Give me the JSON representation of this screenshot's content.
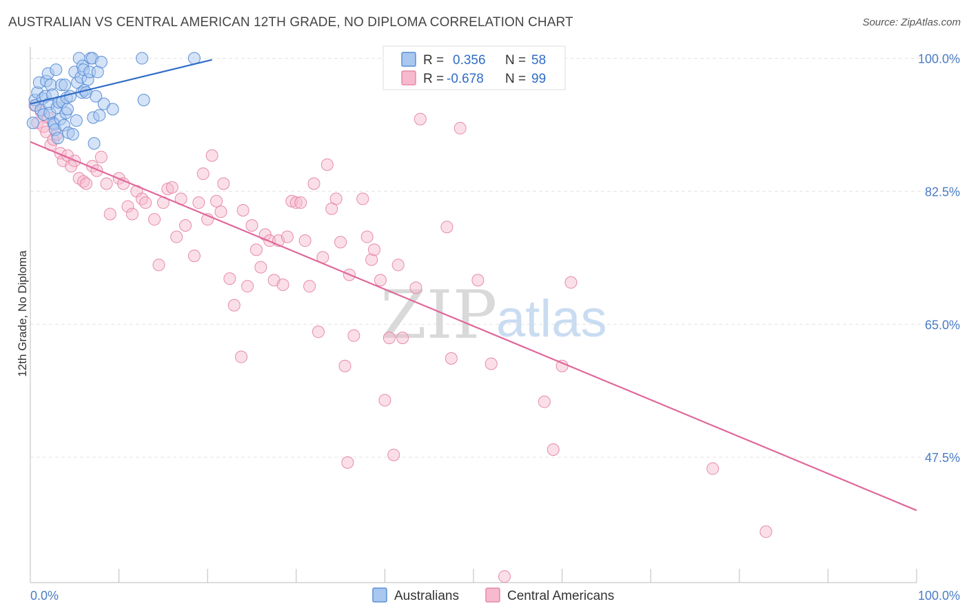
{
  "title": "AUSTRALIAN VS CENTRAL AMERICAN 12TH GRADE, NO DIPLOMA CORRELATION CHART",
  "source": "Source: ZipAtlas.com",
  "watermark": {
    "zip": "ZIP",
    "atlas": "atlas"
  },
  "colors": {
    "blue_fill": "#a9c7ef",
    "blue_stroke": "#5b8fd6",
    "blue_line": "#2f6cc6",
    "pink_fill": "#f6b9cd",
    "pink_stroke": "#e58aa8",
    "pink_line": "#e0679a",
    "grid": "#e3e3e3",
    "tick_label": "#4a7cc4"
  },
  "chart_data": {
    "type": "scatter",
    "xlabel": "",
    "ylabel": "12th Grade, No Diploma",
    "xlim": [
      0,
      100
    ],
    "ylim": [
      31,
      101.5
    ],
    "x_tick_labels": [
      {
        "value": 0,
        "label": "0.0%"
      },
      {
        "value": 100,
        "label": "100.0%"
      }
    ],
    "y_tick_labels": [
      {
        "value": 100,
        "label": "100.0%"
      },
      {
        "value": 82.5,
        "label": "82.5%"
      },
      {
        "value": 65,
        "label": "65.0%"
      },
      {
        "value": 47.5,
        "label": "47.5%"
      }
    ],
    "grid": true,
    "legend_top": {
      "entries": [
        {
          "series": "Australians",
          "r_label": "R =",
          "r_value": "0.356",
          "n_label": "N =",
          "n_value": "58"
        },
        {
          "series": "Central Americans",
          "r_label": "R =",
          "r_value": "-0.678",
          "n_label": "N =",
          "n_value": "99"
        }
      ]
    },
    "legend_bottom": [
      "Australians",
      "Central Americans"
    ],
    "series": [
      {
        "name": "Australians",
        "color": "#a9c7ef",
        "trendline": {
          "x": [
            0,
            20.5
          ],
          "y": [
            94.0,
            99.8
          ]
        },
        "points": [
          [
            0.3,
            91.5
          ],
          [
            0.5,
            94.5
          ],
          [
            0.6,
            93.8
          ],
          [
            0.8,
            95.5
          ],
          [
            1.0,
            96.8
          ],
          [
            1.2,
            93.2
          ],
          [
            1.4,
            94.7
          ],
          [
            1.5,
            92.6
          ],
          [
            1.7,
            95.0
          ],
          [
            1.8,
            97.0
          ],
          [
            2.0,
            98.0
          ],
          [
            2.1,
            94.0
          ],
          [
            2.2,
            92.8
          ],
          [
            2.3,
            96.5
          ],
          [
            2.5,
            95.2
          ],
          [
            2.6,
            91.5
          ],
          [
            2.7,
            91.3
          ],
          [
            2.8,
            90.6
          ],
          [
            2.9,
            98.5
          ],
          [
            3.0,
            93.5
          ],
          [
            3.1,
            89.5
          ],
          [
            3.2,
            94.2
          ],
          [
            3.4,
            92.0
          ],
          [
            3.5,
            96.5
          ],
          [
            3.6,
            94.3
          ],
          [
            3.8,
            91.2
          ],
          [
            3.9,
            96.5
          ],
          [
            4.0,
            92.8
          ],
          [
            4.1,
            94.8
          ],
          [
            4.2,
            93.3
          ],
          [
            4.3,
            90.2
          ],
          [
            4.5,
            95.0
          ],
          [
            4.8,
            90.0
          ],
          [
            5.0,
            98.2
          ],
          [
            5.2,
            91.8
          ],
          [
            5.3,
            96.8
          ],
          [
            5.5,
            100.0
          ],
          [
            5.7,
            97.5
          ],
          [
            5.8,
            95.5
          ],
          [
            5.9,
            99.0
          ],
          [
            6.0,
            98.5
          ],
          [
            6.1,
            95.8
          ],
          [
            6.3,
            95.5
          ],
          [
            6.5,
            97.2
          ],
          [
            6.7,
            98.2
          ],
          [
            6.8,
            100.0
          ],
          [
            7.0,
            100.0
          ],
          [
            7.1,
            92.2
          ],
          [
            7.2,
            88.8
          ],
          [
            7.4,
            95.0
          ],
          [
            7.6,
            98.2
          ],
          [
            7.8,
            92.5
          ],
          [
            8.0,
            99.5
          ],
          [
            8.3,
            94.0
          ],
          [
            9.3,
            93.3
          ],
          [
            12.6,
            100.0
          ],
          [
            12.8,
            94.5
          ],
          [
            18.5,
            100.0
          ]
        ]
      },
      {
        "name": "Central Americans",
        "color": "#f6b9cd",
        "trendline": {
          "x": [
            0,
            100
          ],
          "y": [
            89.0,
            40.5
          ]
        },
        "points": [
          [
            0.5,
            93.8
          ],
          [
            0.8,
            91.5
          ],
          [
            1.2,
            93.0
          ],
          [
            1.5,
            91.0
          ],
          [
            1.8,
            90.3
          ],
          [
            2.0,
            92.2
          ],
          [
            2.3,
            88.6
          ],
          [
            2.6,
            89.3
          ],
          [
            3.0,
            90.0
          ],
          [
            3.4,
            87.5
          ],
          [
            3.7,
            86.5
          ],
          [
            4.2,
            87.2
          ],
          [
            4.6,
            85.8
          ],
          [
            5.0,
            86.5
          ],
          [
            5.5,
            84.2
          ],
          [
            6.0,
            83.8
          ],
          [
            6.3,
            83.5
          ],
          [
            7.0,
            85.8
          ],
          [
            7.5,
            85.2
          ],
          [
            8.0,
            87.0
          ],
          [
            8.6,
            83.5
          ],
          [
            9.0,
            79.5
          ],
          [
            10.0,
            84.2
          ],
          [
            10.5,
            83.5
          ],
          [
            11.0,
            80.5
          ],
          [
            11.5,
            79.5
          ],
          [
            12.0,
            82.5
          ],
          [
            12.6,
            81.5
          ],
          [
            13.0,
            81.0
          ],
          [
            14.0,
            78.8
          ],
          [
            14.5,
            72.8
          ],
          [
            15.0,
            81.0
          ],
          [
            15.5,
            82.8
          ],
          [
            16.0,
            83.0
          ],
          [
            16.5,
            76.5
          ],
          [
            17.0,
            81.5
          ],
          [
            17.5,
            78.0
          ],
          [
            18.5,
            74.0
          ],
          [
            19.0,
            81.0
          ],
          [
            19.5,
            84.8
          ],
          [
            20.0,
            78.8
          ],
          [
            20.5,
            87.2
          ],
          [
            21.0,
            81.2
          ],
          [
            21.5,
            79.8
          ],
          [
            21.8,
            83.5
          ],
          [
            22.5,
            71.0
          ],
          [
            23.0,
            67.5
          ],
          [
            23.8,
            60.7
          ],
          [
            24.0,
            80.0
          ],
          [
            24.5,
            70.0
          ],
          [
            25.0,
            78.0
          ],
          [
            25.5,
            74.8
          ],
          [
            26.0,
            72.5
          ],
          [
            26.5,
            76.8
          ],
          [
            27.0,
            76.0
          ],
          [
            27.5,
            70.8
          ],
          [
            28.0,
            76.0
          ],
          [
            28.5,
            70.2
          ],
          [
            29.0,
            76.5
          ],
          [
            29.5,
            81.2
          ],
          [
            30.0,
            81.0
          ],
          [
            30.5,
            81.0
          ],
          [
            31.0,
            76.0
          ],
          [
            31.5,
            70.0
          ],
          [
            32.0,
            83.5
          ],
          [
            32.5,
            64.0
          ],
          [
            33.0,
            73.8
          ],
          [
            33.5,
            86.0
          ],
          [
            34.0,
            80.2
          ],
          [
            34.5,
            81.5
          ],
          [
            35.0,
            75.8
          ],
          [
            35.5,
            59.5
          ],
          [
            35.8,
            46.8
          ],
          [
            36.0,
            71.5
          ],
          [
            36.5,
            63.5
          ],
          [
            37.5,
            81.5
          ],
          [
            38.0,
            76.5
          ],
          [
            38.5,
            73.5
          ],
          [
            38.8,
            74.8
          ],
          [
            39.5,
            70.8
          ],
          [
            40.0,
            55.0
          ],
          [
            40.5,
            63.2
          ],
          [
            41.0,
            47.8
          ],
          [
            41.5,
            72.8
          ],
          [
            42.0,
            63.2
          ],
          [
            43.5,
            69.8
          ],
          [
            44.0,
            92.0
          ],
          [
            47.0,
            77.8
          ],
          [
            47.5,
            60.5
          ],
          [
            48.5,
            90.8
          ],
          [
            50.5,
            70.8
          ],
          [
            52.0,
            59.8
          ],
          [
            58.0,
            54.8
          ],
          [
            59.0,
            48.5
          ],
          [
            60.0,
            59.5
          ],
          [
            61.0,
            70.5
          ],
          [
            77.0,
            46.0
          ],
          [
            83.0,
            37.7
          ],
          [
            53.5,
            31.8
          ]
        ]
      }
    ]
  }
}
